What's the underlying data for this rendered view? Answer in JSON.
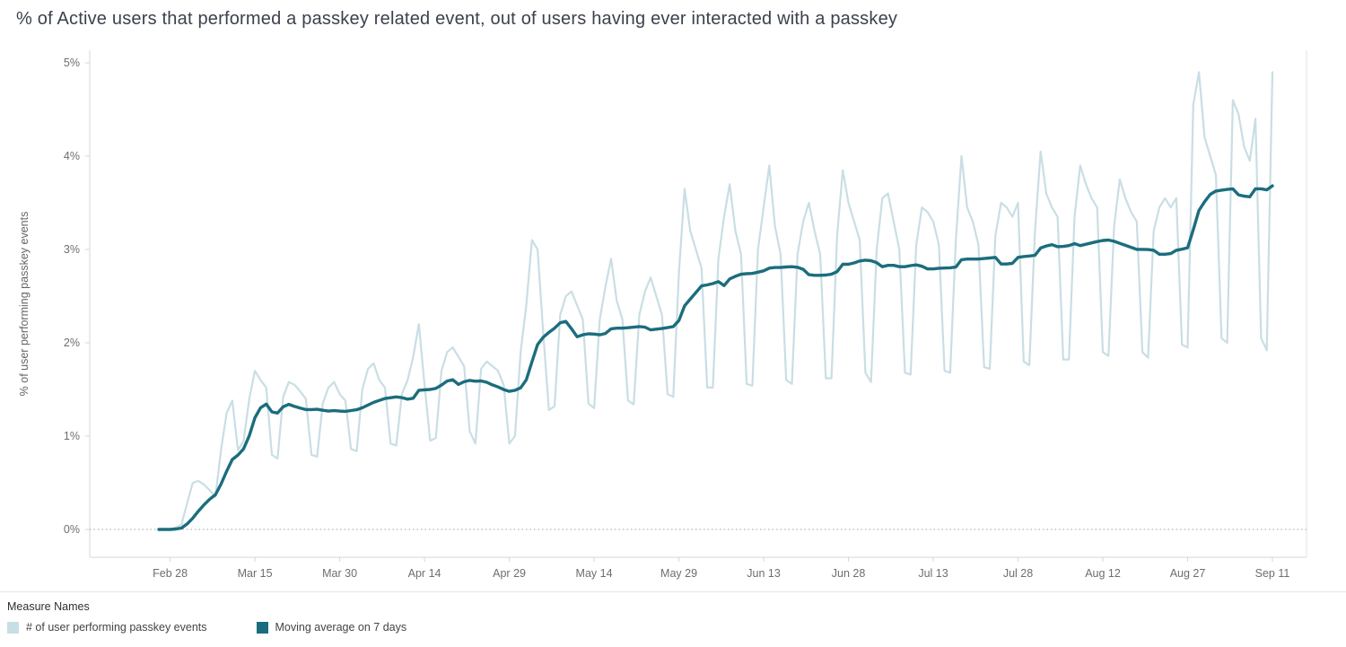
{
  "title": "% of Active users that performed a passkey related event, out of users having ever interacted with a passkey",
  "legend": {
    "title": "Measure Names",
    "items": [
      {
        "label": "# of user performing passkey events",
        "color": "#c9dee4"
      },
      {
        "label": "Moving average on 7 days",
        "color": "#1b6d7d"
      }
    ]
  },
  "chart_data": {
    "type": "line",
    "title": "% of Active users that performed a passkey related event, out of users having ever interacted with a passkey",
    "xlabel": "",
    "ylabel": "% of user performing passkey events",
    "ylim": [
      0,
      5
    ],
    "grid": "dotted zero line only",
    "legend_position": "bottom-left",
    "x_unit": "day",
    "x_start_label": "Feb 26",
    "y_ticks": [
      {
        "label": "0%",
        "value": 0
      },
      {
        "label": "1%",
        "value": 1
      },
      {
        "label": "2%",
        "value": 2
      },
      {
        "label": "3%",
        "value": 3
      },
      {
        "label": "4%",
        "value": 4
      },
      {
        "label": "5%",
        "value": 5
      }
    ],
    "x_ticks": [
      {
        "label": "Feb 28",
        "day": 2
      },
      {
        "label": "Mar 15",
        "day": 17
      },
      {
        "label": "Mar 30",
        "day": 32
      },
      {
        "label": "Apr 14",
        "day": 47
      },
      {
        "label": "Apr 29",
        "day": 62
      },
      {
        "label": "May 14",
        "day": 77
      },
      {
        "label": "May 29",
        "day": 92
      },
      {
        "label": "Jun 13",
        "day": 107
      },
      {
        "label": "Jun 28",
        "day": 122
      },
      {
        "label": "Jul 13",
        "day": 137
      },
      {
        "label": "Jul 28",
        "day": 152
      },
      {
        "label": "Aug 12",
        "day": 167
      },
      {
        "label": "Aug 27",
        "day": 182
      },
      {
        "label": "Sep 11",
        "day": 197
      }
    ],
    "series": [
      {
        "name": "# of user performing passkey events",
        "color": "#c9dee4",
        "unit": "%",
        "values": [
          0.0,
          0.0,
          0.0,
          0.02,
          0.05,
          0.28,
          0.5,
          0.52,
          0.48,
          0.42,
          0.35,
          0.85,
          1.25,
          1.38,
          0.85,
          0.95,
          1.4,
          1.7,
          1.6,
          1.52,
          0.8,
          0.76,
          1.42,
          1.58,
          1.55,
          1.48,
          1.4,
          0.8,
          0.78,
          1.35,
          1.52,
          1.58,
          1.45,
          1.38,
          0.86,
          0.84,
          1.5,
          1.72,
          1.78,
          1.6,
          1.52,
          0.92,
          0.9,
          1.45,
          1.6,
          1.85,
          2.2,
          1.55,
          0.95,
          0.98,
          1.7,
          1.9,
          1.95,
          1.85,
          1.75,
          1.05,
          0.92,
          1.72,
          1.8,
          1.75,
          1.7,
          1.55,
          0.92,
          1.0,
          1.9,
          2.4,
          3.1,
          3.0,
          2.1,
          1.28,
          1.32,
          2.3,
          2.5,
          2.55,
          2.4,
          2.25,
          1.35,
          1.3,
          2.25,
          2.6,
          2.9,
          2.45,
          2.25,
          1.38,
          1.34,
          2.3,
          2.55,
          2.7,
          2.5,
          2.3,
          1.45,
          1.42,
          2.75,
          3.65,
          3.2,
          3.0,
          2.8,
          1.52,
          1.52,
          2.9,
          3.35,
          3.7,
          3.2,
          2.95,
          1.56,
          1.54,
          3.0,
          3.45,
          3.9,
          3.25,
          2.95,
          1.6,
          1.56,
          2.95,
          3.3,
          3.5,
          3.2,
          2.95,
          1.62,
          1.62,
          3.15,
          3.85,
          3.5,
          3.3,
          3.1,
          1.68,
          1.58,
          3.0,
          3.55,
          3.6,
          3.3,
          3.0,
          1.68,
          1.66,
          3.05,
          3.45,
          3.4,
          3.3,
          3.05,
          1.7,
          1.68,
          3.1,
          4.0,
          3.45,
          3.3,
          3.05,
          1.74,
          1.72,
          3.15,
          3.5,
          3.45,
          3.35,
          3.5,
          1.8,
          1.76,
          3.2,
          4.05,
          3.6,
          3.45,
          3.35,
          1.82,
          1.82,
          3.35,
          3.9,
          3.7,
          3.55,
          3.45,
          1.9,
          1.86,
          3.25,
          3.75,
          3.55,
          3.4,
          3.3,
          1.9,
          1.84,
          3.2,
          3.45,
          3.55,
          3.45,
          3.55,
          1.98,
          1.95,
          4.55,
          4.9,
          4.2,
          4.0,
          3.8,
          2.05,
          2.0,
          4.6,
          4.45,
          4.1,
          3.95,
          4.4,
          2.05,
          1.92,
          4.9
        ]
      },
      {
        "name": "Moving average on 7 days",
        "color": "#1b6d7d",
        "unit": "%",
        "derived": "trailing moving average of daily series",
        "window": 7
      }
    ]
  }
}
